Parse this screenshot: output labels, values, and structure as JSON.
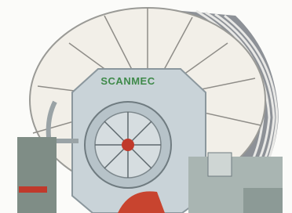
{
  "image": {
    "brand_label": "SCANMEC"
  }
}
